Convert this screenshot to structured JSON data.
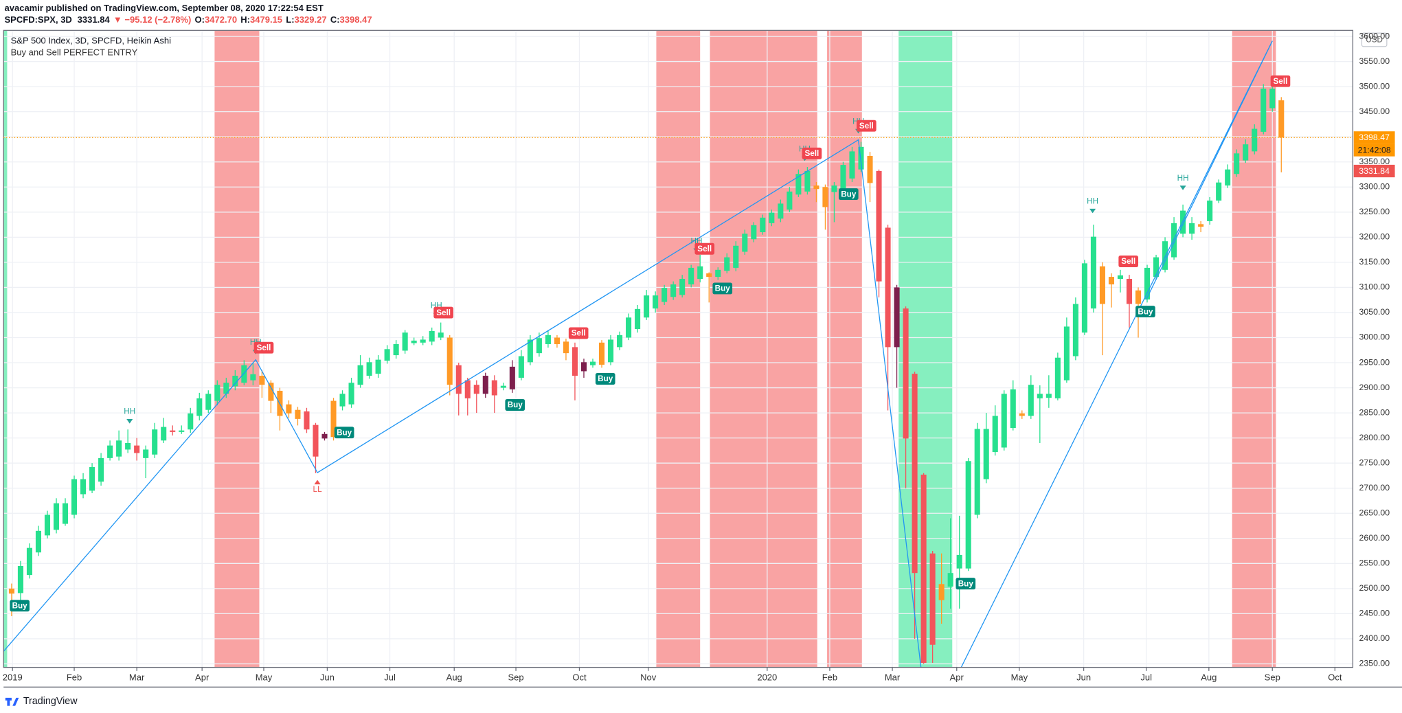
{
  "header": {
    "line1": "avacamir published on TradingView.com, September 08, 2020 17:22:54 EST",
    "symbol": "SPCFD:SPX, 3D",
    "price": "3331.84",
    "change": "▼ −95.12 (−2.78%)",
    "ohlc": [
      {
        "key": "O:",
        "value": "3472.70"
      },
      {
        "key": "H:",
        "value": "3479.15"
      },
      {
        "key": "L:",
        "value": "3329.27"
      },
      {
        "key": "C:",
        "value": "3398.47"
      }
    ]
  },
  "footer": {
    "brand": "TradingView"
  },
  "chart_data": {
    "type": "candlestick",
    "title": "S&P 500 Index, 3D, SPCFD, Heikin Ashi",
    "subtitle": "Buy and Sell PERFECT ENTRY",
    "currency": "USD",
    "categories": [
      null,
      null,
      null,
      null,
      null,
      null,
      null,
      null,
      null,
      null,
      null,
      null,
      null,
      null,
      null,
      null,
      null,
      null,
      null,
      null,
      null,
      null,
      null,
      null,
      null,
      null,
      null,
      null,
      null,
      null,
      null,
      null,
      null,
      null,
      null,
      null,
      null,
      null,
      null,
      null,
      null,
      null,
      null,
      null,
      null,
      null,
      null,
      null,
      null,
      null,
      null,
      null,
      null,
      null,
      null,
      null,
      null,
      null,
      null,
      null,
      null,
      null,
      null,
      null,
      null,
      null,
      null,
      null,
      null,
      null,
      null,
      null,
      null,
      null,
      null,
      null,
      null,
      null,
      null,
      null,
      null,
      null,
      null,
      null,
      null,
      null,
      null,
      null,
      null,
      null,
      null,
      null,
      null,
      null,
      null,
      null,
      null,
      null,
      null,
      null,
      null,
      null,
      null,
      null,
      null,
      null,
      null,
      null,
      null,
      null,
      null,
      null,
      null,
      null,
      null,
      null,
      null,
      null,
      null,
      null,
      null,
      null,
      null,
      null,
      null,
      null,
      null,
      null,
      null,
      null,
      null,
      null,
      null,
      null,
      null,
      null,
      null,
      null,
      null,
      null,
      null,
      null,
      null
    ],
    "open": [
      2500,
      2491,
      2527,
      2572,
      2606,
      2617,
      2629,
      2647,
      2688,
      2695,
      2713,
      2760,
      2763,
      2777,
      2785,
      2760,
      2767,
      2795,
      2815,
      2812,
      2817,
      2844,
      2856,
      2874,
      2888,
      2903,
      2910,
      2915,
      2924,
      2910,
      2894,
      2867,
      2856,
      2853,
      2826,
      2808,
      2874,
      2863,
      2867,
      2906,
      2924,
      2928,
      2954,
      2965,
      2974,
      2989,
      2990,
      2992,
      3000,
      3000,
      2945,
      2915,
      2906,
      2924,
      2915,
      2900,
      2942,
      2920,
      2951,
      2969,
      2987,
      3000,
      2992,
      2981,
      2951,
      2945,
      2990,
      2951,
      2981,
      3000,
      3017,
      3040,
      3058,
      3071,
      3081,
      3085,
      3106,
      3117,
      3128,
      3121,
      3133,
      3139,
      3171,
      3196,
      3210,
      3228,
      3237,
      3255,
      3285,
      3291,
      3303,
      3300,
      3290,
      3285,
      3317,
      3335,
      3362,
      3332,
      3219,
      3100,
      3058,
      2928,
      2727,
      2570,
      2509,
      2504,
      2540,
      2540,
      2647,
      2718,
      2772,
      2781,
      2820,
      2849,
      2844,
      2879,
      2880,
      2879,
      2915,
      2963,
      3010,
      3058,
      3142,
      3121,
      3117,
      3117,
      3094,
      3076,
      3121,
      3135,
      3160,
      3207,
      3207,
      3226,
      3232,
      3273,
      3303,
      3326,
      3353,
      3371,
      3410,
      3457,
      3472.7
    ],
    "close": [
      2490,
      2545,
      2581,
      2615,
      2647,
      2670,
      2670,
      2718,
      2718,
      2742,
      2760,
      2785,
      2795,
      2790,
      2770,
      2777,
      2817,
      2822,
      2812,
      2815,
      2849,
      2879,
      2888,
      2906,
      2910,
      2924,
      2945,
      2927,
      2906,
      2874,
      2844,
      2849,
      2838,
      2817,
      2763,
      2799,
      2802,
      2888,
      2910,
      2945,
      2951,
      2956,
      2977,
      2987,
      3010,
      2994,
      2996,
      3013,
      3010,
      2906,
      2888,
      2879,
      2888,
      2888,
      2885,
      2904,
      2897,
      2963,
      2996,
      2999,
      3005,
      2987,
      2969,
      2924,
      2933,
      2952,
      2946,
      2996,
      3005,
      3040,
      3057,
      3084,
      3084,
      3099,
      3106,
      3117,
      3139,
      3142,
      3121,
      3135,
      3160,
      3183,
      3207,
      3224,
      3239,
      3249,
      3267,
      3291,
      3326,
      3332,
      3296,
      3260,
      3303,
      3344,
      3371,
      3380,
      3308,
      3112,
      2981,
      2981,
      2799,
      2531,
      2352,
      2388,
      2477,
      2531,
      2567,
      2754,
      2818,
      2818,
      2844,
      2888,
      2897,
      2844,
      2906,
      2888,
      2888,
      2960,
      3022,
      3067,
      3148,
      3201,
      3067,
      3106,
      3124,
      3067,
      3067,
      3139,
      3160,
      3192,
      3228,
      3253,
      3228,
      3221,
      3273,
      3309,
      3335,
      3367,
      3385,
      3416,
      3496,
      3496,
      3398.47
    ],
    "high": [
      2510,
      2555,
      2590,
      2625,
      2655,
      2680,
      2680,
      2725,
      2730,
      2750,
      2770,
      2795,
      2815,
      2817,
      2800,
      2785,
      2830,
      2840,
      2825,
      2825,
      2860,
      2890,
      2895,
      2915,
      2920,
      2935,
      2955,
      2950,
      2935,
      2915,
      2900,
      2875,
      2862,
      2860,
      2830,
      2812,
      2880,
      2895,
      2920,
      2965,
      2960,
      2965,
      2985,
      2995,
      3015,
      3000,
      3003,
      3020,
      3030,
      3005,
      2950,
      2920,
      2915,
      2930,
      2925,
      2910,
      2955,
      2975,
      3005,
      3010,
      3015,
      3005,
      2998,
      2990,
      2958,
      2958,
      2995,
      3005,
      3012,
      3048,
      3065,
      3095,
      3092,
      3105,
      3112,
      3125,
      3145,
      3165,
      3130,
      3140,
      3168,
      3192,
      3215,
      3230,
      3245,
      3255,
      3275,
      3300,
      3335,
      3340,
      3310,
      3305,
      3310,
      3350,
      3380,
      3390,
      3370,
      3335,
      3225,
      3105,
      3062,
      2932,
      2730,
      2575,
      2570,
      2640,
      2645,
      2760,
      2830,
      2850,
      2865,
      2895,
      2915,
      2855,
      2925,
      2905,
      2925,
      2970,
      3040,
      3080,
      3155,
      3225,
      3150,
      3128,
      3135,
      3125,
      3100,
      3145,
      3165,
      3200,
      3240,
      3265,
      3240,
      3232,
      3280,
      3315,
      3345,
      3375,
      3395,
      3425,
      3505,
      3520,
      3479.15
    ],
    "low": [
      2445,
      2470,
      2520,
      2565,
      2600,
      2610,
      2625,
      2640,
      2680,
      2690,
      2705,
      2755,
      2755,
      2770,
      2755,
      2720,
      2760,
      2790,
      2805,
      2808,
      2810,
      2835,
      2850,
      2865,
      2880,
      2895,
      2905,
      2905,
      2880,
      2850,
      2815,
      2840,
      2825,
      2810,
      2730,
      2795,
      2795,
      2855,
      2860,
      2900,
      2918,
      2920,
      2948,
      2958,
      2968,
      2985,
      2985,
      2985,
      2995,
      2885,
      2845,
      2845,
      2850,
      2880,
      2850,
      2895,
      2890,
      2915,
      2945,
      2962,
      2980,
      2980,
      2955,
      2875,
      2920,
      2940,
      2940,
      2945,
      2975,
      2995,
      3010,
      3035,
      3050,
      3065,
      3075,
      3080,
      3100,
      3110,
      3070,
      3115,
      3128,
      3132,
      3165,
      3190,
      3205,
      3222,
      3230,
      3250,
      3280,
      3285,
      3270,
      3215,
      3230,
      3280,
      3310,
      3330,
      3270,
      3080,
      2855,
      2900,
      2700,
      2400,
      2350,
      2352,
      2430,
      2460,
      2460,
      2535,
      2640,
      2710,
      2765,
      2775,
      2815,
      2838,
      2838,
      2790,
      2860,
      2875,
      2910,
      2955,
      3005,
      3050,
      2965,
      3060,
      3090,
      3020,
      3000,
      3070,
      3115,
      3130,
      3155,
      3200,
      3195,
      3210,
      3225,
      3268,
      3298,
      3320,
      3348,
      3365,
      3405,
      3450,
      3329.27
    ],
    "colors": [
      "#ff9a26",
      "#26e08e",
      "#26e08e",
      "#26e08e",
      "#26e08e",
      "#26e08e",
      "#26e08e",
      "#26e08e",
      "#26e08e",
      "#26e08e",
      "#26e08e",
      "#26e08e",
      "#26e08e",
      "#26e08e",
      "#f2545b",
      "#26e08e",
      "#26e08e",
      "#26e08e",
      "#f2545b",
      "#26e08e",
      "#26e08e",
      "#26e08e",
      "#26e08e",
      "#26e08e",
      "#26e08e",
      "#26e08e",
      "#26e08e",
      "#26e08e",
      "#ff9a26",
      "#ff9a26",
      "#ff9a26",
      "#ff9a26",
      "#ff9a26",
      "#f2545b",
      "#f2545b",
      "#7d1f4d",
      "#ff9a26",
      "#26e08e",
      "#26e08e",
      "#26e08e",
      "#26e08e",
      "#26e08e",
      "#26e08e",
      "#26e08e",
      "#26e08e",
      "#26e08e",
      "#26e08e",
      "#26e08e",
      "#26e08e",
      "#ff9a26",
      "#f2545b",
      "#f2545b",
      "#f2545b",
      "#7d1f4d",
      "#f2545b",
      "#26e08e",
      "#7d1f4d",
      "#26e08e",
      "#26e08e",
      "#26e08e",
      "#26e08e",
      "#ff9a26",
      "#ff9a26",
      "#f2545b",
      "#7d1f4d",
      "#26e08e",
      "#ff9a26",
      "#26e08e",
      "#26e08e",
      "#26e08e",
      "#26e08e",
      "#26e08e",
      "#26e08e",
      "#26e08e",
      "#26e08e",
      "#26e08e",
      "#26e08e",
      "#26e08e",
      "#ff9a26",
      "#26e08e",
      "#26e08e",
      "#26e08e",
      "#26e08e",
      "#26e08e",
      "#26e08e",
      "#26e08e",
      "#26e08e",
      "#26e08e",
      "#26e08e",
      "#26e08e",
      "#ff9a26",
      "#ff9a26",
      "#26e08e",
      "#26e08e",
      "#26e08e",
      "#26e08e",
      "#ff9a26",
      "#f2545b",
      "#f2545b",
      "#7d1f4d",
      "#f2545b",
      "#f2545b",
      "#f2545b",
      "#f2545b",
      "#ff9a26",
      "#26e08e",
      "#26e08e",
      "#26e08e",
      "#26e08e",
      "#26e08e",
      "#26e08e",
      "#26e08e",
      "#26e08e",
      "#ff9a26",
      "#26e08e",
      "#26e08e",
      "#26e08e",
      "#26e08e",
      "#26e08e",
      "#26e08e",
      "#26e08e",
      "#26e08e",
      "#ff9a26",
      "#ff9a26",
      "#26e08e",
      "#f2545b",
      "#ff9a26",
      "#26e08e",
      "#26e08e",
      "#26e08e",
      "#26e08e",
      "#26e08e",
      "#26e08e",
      "#ff9a26",
      "#26e08e",
      "#26e08e",
      "#26e08e",
      "#26e08e",
      "#26e08e",
      "#26e08e",
      "#26e08e",
      "#26e08e",
      "#ff9a26"
    ],
    "xlim": [
      -0.9,
      150
    ],
    "ylim": [
      2343,
      3612
    ],
    "xticks": [
      {
        "value": 0.1,
        "label": "2019"
      },
      {
        "value": 7,
        "label": "Feb"
      },
      {
        "value": 14,
        "label": "Mar"
      },
      {
        "value": 21.3,
        "label": "Apr"
      },
      {
        "value": 28.2,
        "label": "May"
      },
      {
        "value": 35.3,
        "label": "Jun"
      },
      {
        "value": 42.3,
        "label": "Jul"
      },
      {
        "value": 49.5,
        "label": "Aug"
      },
      {
        "value": 56.4,
        "label": "Sep"
      },
      {
        "value": 63.5,
        "label": "Oct"
      },
      {
        "value": 71.2,
        "label": "Nov"
      },
      {
        "value": 84.5,
        "label": "2020"
      },
      {
        "value": 91.5,
        "label": "Feb"
      },
      {
        "value": 98.5,
        "label": "Mar"
      },
      {
        "value": 105.7,
        "label": "Apr"
      },
      {
        "value": 112.7,
        "label": "May"
      },
      {
        "value": 119.9,
        "label": "Jun"
      },
      {
        "value": 126.9,
        "label": "Jul"
      },
      {
        "value": 133.9,
        "label": "Aug"
      },
      {
        "value": 141,
        "label": "Sep"
      },
      {
        "value": 148,
        "label": "Oct"
      }
    ],
    "yticks": [
      {
        "value": 2350,
        "label": "2350.00"
      },
      {
        "value": 2400,
        "label": "2400.00"
      },
      {
        "value": 2450,
        "label": "2450.00"
      },
      {
        "value": 2500,
        "label": "2500.00"
      },
      {
        "value": 2550,
        "label": "2550.00"
      },
      {
        "value": 2600,
        "label": "2600.00"
      },
      {
        "value": 2650,
        "label": "2650.00"
      },
      {
        "value": 2700,
        "label": "2700.00"
      },
      {
        "value": 2750,
        "label": "2750.00"
      },
      {
        "value": 2800,
        "label": "2800.00"
      },
      {
        "value": 2850,
        "label": "2850.00"
      },
      {
        "value": 2900,
        "label": "2900.00"
      },
      {
        "value": 2950,
        "label": "2950.00"
      },
      {
        "value": 3000,
        "label": "3000.00"
      },
      {
        "value": 3050,
        "label": "3050.00"
      },
      {
        "value": 3100,
        "label": "3100.00"
      },
      {
        "value": 3150,
        "label": "3150.00"
      },
      {
        "value": 3200,
        "label": "3200.00"
      },
      {
        "value": 3250,
        "label": "3250.00"
      },
      {
        "value": 3300,
        "label": "3300.00"
      },
      {
        "value": 3350,
        "label": "3350.00"
      },
      {
        "value": 3400,
        "label": "3400.00"
      },
      {
        "value": 3450,
        "label": "3450.00"
      },
      {
        "value": 3500,
        "label": "3500.00"
      },
      {
        "value": 3550,
        "label": "3550.00"
      },
      {
        "value": 3600,
        "label": "3600.00"
      }
    ],
    "grid": true,
    "zones": [
      {
        "start": -0.9,
        "end": -0.5,
        "color": "#86efbf"
      },
      {
        "start": 22.7,
        "end": 27.7,
        "color": "#f9a3a3"
      },
      {
        "start": 72.1,
        "end": 77,
        "color": "#f9a3a3"
      },
      {
        "start": 78.1,
        "end": 90.1,
        "color": "#f9a3a3"
      },
      {
        "start": 91.2,
        "end": 95.1,
        "color": "#f9a3a3"
      },
      {
        "start": 99.2,
        "end": 105.2,
        "color": "#86efbf"
      },
      {
        "start": 136.5,
        "end": 141.4,
        "color": "#f9a3a3"
      }
    ],
    "lines": [
      {
        "color": "#2196f3",
        "x": [
          -0.9,
          27.3,
          34.2,
          94.7,
          101.7
        ],
        "y": [
          2375,
          2956,
          2731,
          3394,
          2343
        ]
      },
      {
        "color": "#2196f3",
        "x": [
          106.2,
          141
        ],
        "y": [
          2343,
          3591
        ]
      },
      {
        "color": "#2196f3",
        "x": [
          126.9,
          141
        ],
        "y": [
          3076,
          3591
        ]
      }
    ],
    "signals": [
      {
        "label": "Buy",
        "x": 0.9,
        "y": 2465,
        "style": "box",
        "color": "#00897b"
      },
      {
        "label": "Buy",
        "x": 37.2,
        "y": 2810,
        "style": "box",
        "color": "#00897b"
      },
      {
        "label": "Buy",
        "x": 56.3,
        "y": 2865,
        "style": "box",
        "color": "#00897b"
      },
      {
        "label": "Buy",
        "x": 66.4,
        "y": 2917,
        "style": "box",
        "color": "#00897b"
      },
      {
        "label": "Buy",
        "x": 79.5,
        "y": 3097,
        "style": "box",
        "color": "#00897b"
      },
      {
        "label": "Buy",
        "x": 93.6,
        "y": 3285,
        "style": "box",
        "color": "#00897b"
      },
      {
        "label": "Buy",
        "x": 106.7,
        "y": 2509,
        "style": "box",
        "color": "#00897b"
      },
      {
        "label": "Buy",
        "x": 126.8,
        "y": 3051,
        "style": "box",
        "color": "#00897b"
      },
      {
        "label": "HH",
        "x": 13.2,
        "y": 2852,
        "style": "down",
        "color": "#26a69a"
      },
      {
        "label": "HH",
        "x": 27.3,
        "y": 2990,
        "style": "down",
        "color": "#26a69a"
      },
      {
        "label": "HH",
        "x": 47.5,
        "y": 3063,
        "style": "down",
        "color": "#26a69a"
      },
      {
        "label": "HH",
        "x": 76.6,
        "y": 3192,
        "style": "down",
        "color": "#26a69a"
      },
      {
        "label": "HH",
        "x": 88.7,
        "y": 3375,
        "style": "down",
        "color": "#26a69a"
      },
      {
        "label": "HH",
        "x": 94.7,
        "y": 3430,
        "style": "down",
        "color": "#26a69a"
      },
      {
        "label": "HH",
        "x": 120.9,
        "y": 3271,
        "style": "down",
        "color": "#26a69a"
      },
      {
        "label": "HH",
        "x": 131,
        "y": 3317,
        "style": "down",
        "color": "#26a69a"
      },
      {
        "label": "LL",
        "x": 34.2,
        "y": 2697,
        "style": "up",
        "color": "#ef5350"
      },
      {
        "label": "Sell",
        "x": 28.2,
        "y": 2979,
        "style": "box",
        "color": "#f0454f"
      },
      {
        "label": "Sell",
        "x": 48.3,
        "y": 3049,
        "style": "box",
        "color": "#f0454f"
      },
      {
        "label": "Sell",
        "x": 63.4,
        "y": 3008,
        "style": "box",
        "color": "#f0454f"
      },
      {
        "label": "Sell",
        "x": 77.5,
        "y": 3176,
        "style": "box",
        "color": "#f0454f"
      },
      {
        "label": "Sell",
        "x": 89.5,
        "y": 3366,
        "style": "box",
        "color": "#f0454f"
      },
      {
        "label": "Sell",
        "x": 95.6,
        "y": 3421,
        "style": "box",
        "color": "#f0454f"
      },
      {
        "label": "Sell",
        "x": 124.9,
        "y": 3151,
        "style": "box",
        "color": "#f0454f"
      },
      {
        "label": "Sell",
        "x": 141.9,
        "y": 3510,
        "style": "box",
        "color": "#f0454f"
      }
    ],
    "price_markers": [
      {
        "value": 3398.47,
        "label": "3398.47",
        "color": "#ff9800",
        "dotted": true
      },
      {
        "value": 3331.84,
        "label": "3331.84",
        "color": "#ef5350",
        "dotted": false
      }
    ],
    "countdown": "21:42:08"
  }
}
